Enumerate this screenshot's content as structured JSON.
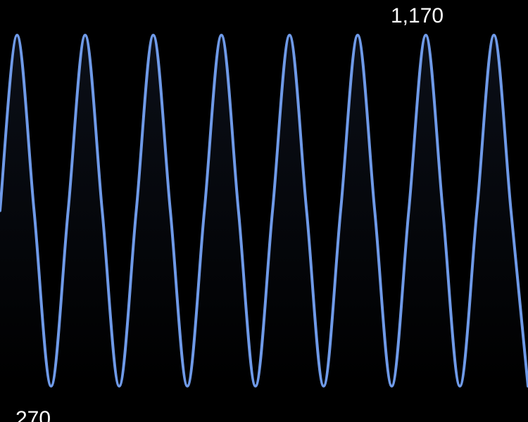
{
  "chart_data": {
    "type": "area",
    "title": "",
    "xlabel": "",
    "ylabel": "",
    "grid": false,
    "legend": "none",
    "ylim": [
      270,
      1170
    ],
    "series": [
      {
        "values": [
          720,
          1170,
          720,
          270,
          720,
          1170,
          720,
          270,
          720,
          1170,
          720,
          270,
          720,
          1170,
          720,
          270,
          720,
          1170,
          720,
          270,
          720,
          1170,
          720,
          270,
          720,
          1170,
          720,
          270,
          720,
          1170,
          720,
          270
        ]
      }
    ],
    "annotations": {
      "max_label": "1,170",
      "min_label": "270"
    },
    "colors": {
      "background": "#000000",
      "line": "#6f9ae8",
      "fill_top": "#0b0f18",
      "fill_bottom": "#000000",
      "text": "#ffffff"
    }
  }
}
